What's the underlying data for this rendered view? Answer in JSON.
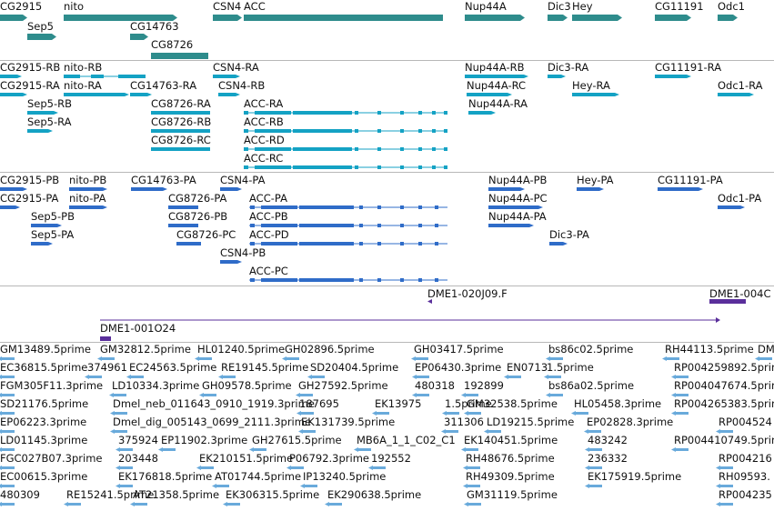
{
  "colors": {
    "gene": "#2e8c8c",
    "mrna": "#14a2c4",
    "protein": "#2f6cc8",
    "clone": "#5a2f9b",
    "est": "#69aadb",
    "separator": "#b8b8b8"
  },
  "tracks": {
    "genes": [
      "CG2915",
      "nito",
      "CSN4",
      "ACC",
      "Nup44A",
      "Dic3",
      "Hey",
      "CG11191",
      "Odc1",
      "Sep5",
      "CG14763",
      "CG8726"
    ],
    "transcripts": [
      "CG2915-RB",
      "nito-RB",
      "CSN4-RA",
      "Nup44A-RB",
      "Dic3-RA",
      "CG11191-RA",
      "CG2915-RA",
      "nito-RA",
      "CG14763-RA",
      "CSN4-RB",
      "Nup44A-RC",
      "Hey-RA",
      "Odc1-RA",
      "Sep5-RB",
      "CG8726-RA",
      "ACC-RA",
      "Nup44A-RA",
      "Sep5-RA",
      "CG8726-RB",
      "ACC-RB",
      "CG8726-RC",
      "ACC-RD",
      "ACC-RC"
    ],
    "proteins": [
      "CG2915-PB",
      "nito-PB",
      "CG14763-PA",
      "CSN4-PA",
      "Nup44A-PB",
      "Hey-PA",
      "CG11191-PA",
      "CG2915-PA",
      "nito-PA",
      "CG8726-PA",
      "ACC-PA",
      "Nup44A-PC",
      "Odc1-PA",
      "Sep5-PB",
      "CG8726-PB",
      "ACC-PB",
      "Nup44A-PA",
      "Sep5-PA",
      "CG8726-PC",
      "ACC-PD",
      "Dic3-PA",
      "CSN4-PB",
      "ACC-PC"
    ],
    "clones": [
      "DME1-020J09.F",
      "DME1-004C",
      "DME1-001O24"
    ],
    "ests": [
      "GM13489.5prime",
      "GM32812.5prime",
      "HL01240.5prime",
      "GH02896.5prime",
      "GH03417.5prime",
      "bs86c02.5prime",
      "RH44113.5prime",
      "DM",
      "EC36815.5prime",
      "374961",
      "EC24563.5prime",
      "RE19145.5prime",
      "SD20404.5prime",
      "EP06430.3prime",
      "EN0713",
      "1.5prime",
      "RP004259892.5prime",
      "FGM305F11.3prime",
      "LD10334.3prime",
      "GH09578.5prime",
      "GH27592.5prime",
      "480318",
      "192899",
      "bs86a02.5prime",
      "RP004047674.5prime",
      "SD21176.5prime",
      "Dmel_neb_011643_0910_1919.3prime",
      "187695",
      "EK13975",
      "1.5prime",
      "GM32538.5prime",
      "HL05458.3prime",
      "RP004265383.5prime",
      "EP06223.3prime",
      "Dmel_dig_005143_0699_2111.3prime",
      "EK131739.5prime",
      "311306",
      "LD19215.5prime",
      "EP02828.3prime",
      "RP004524",
      "LD01145.3prime",
      "375924",
      "EP11902.3prime",
      "GH27615.5prime",
      "MB6A_1_1_C02_C1",
      "EK140451.5prime",
      "483242",
      "RP004410749.5prime",
      "FGC027B07.3prime",
      "203448",
      "EK210151.5prime",
      "P06792.3prime",
      "192552",
      "RH48676.5prime",
      "236332",
      "RP004216",
      "EC00615.3prime",
      "EK176818.5prime",
      "AT01744.5prime",
      "IP13240.5prime",
      "RH49309.5prime",
      "EK175919.5prime",
      "RH09593.",
      "480309",
      "RE15241.5prime",
      "AT21358.5prime",
      "EK306315.5prime",
      "EK290638.5prime",
      "GM31119.5prime",
      "RP004235"
    ]
  }
}
